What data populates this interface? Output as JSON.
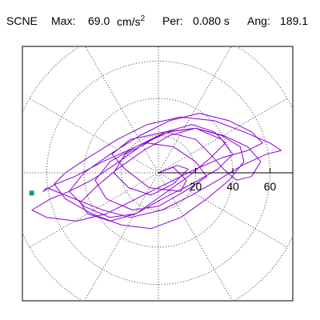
{
  "header": {
    "station": "SCNE",
    "max_label": "Max:",
    "max_value": "69.0",
    "max_unit": "cm/s",
    "max_unit_exp": "2",
    "period_label": "Per:",
    "period_value": "0.080 s",
    "angle_label": "Ang:",
    "angle_value": "189.1"
  },
  "chart_data": {
    "type": "line",
    "subtype": "polar-orbit",
    "title": "",
    "rmax": 80,
    "rings": [
      20,
      40,
      60,
      80
    ],
    "ring_labels": [
      "20",
      "40",
      "60"
    ],
    "spokes_deg": [
      0,
      30,
      60,
      90,
      120,
      150,
      180,
      210,
      240,
      270,
      300,
      330
    ],
    "grid": "dotted",
    "max_amplitude": 69.0,
    "max_angle_deg": 189.1,
    "trace_color": "#8a00d4",
    "axis_color": "#000000",
    "marker_color": "#0f9a7a",
    "series": [
      {
        "type": "orbit",
        "x": [
          0,
          8,
          15,
          12,
          -5,
          -18,
          -25,
          -15,
          4,
          20,
          28,
          35,
          42,
          50,
          55,
          48,
          35,
          20,
          6,
          -12,
          -30,
          -45,
          -55,
          -62,
          -60,
          -45,
          -30,
          -15,
          2,
          18,
          32,
          45,
          58,
          66,
          60,
          46,
          30,
          12,
          -6,
          -22,
          -38,
          -50,
          -56,
          -50,
          -36,
          -20,
          -4,
          12,
          26,
          38,
          46,
          44,
          34,
          20,
          6,
          -8,
          -22,
          -34,
          -42,
          -38,
          -26,
          -12,
          2,
          16,
          28,
          36,
          30,
          18,
          4,
          -10,
          -24,
          -36,
          -48,
          -58,
          -68,
          -60,
          -44,
          -28,
          -12,
          4,
          20,
          34,
          48,
          56,
          50,
          38,
          22,
          6,
          -10,
          -26,
          -40,
          -48,
          -40,
          -26,
          -12,
          2,
          18,
          32,
          40,
          34,
          20,
          4,
          -12,
          -26,
          -34,
          -28,
          -14,
          0,
          14,
          26,
          20,
          8,
          -6,
          -18,
          -24,
          -16,
          -4,
          8,
          16,
          10,
          0
        ],
        "y": [
          0,
          3,
          -4,
          -10,
          -8,
          2,
          10,
          18,
          22,
          18,
          10,
          2,
          -4,
          -2,
          6,
          14,
          20,
          24,
          22,
          14,
          6,
          -2,
          -6,
          -10,
          -8,
          -14,
          -20,
          -24,
          -20,
          -12,
          -4,
          4,
          10,
          12,
          16,
          22,
          28,
          30,
          26,
          18,
          8,
          0,
          -6,
          -14,
          -22,
          -28,
          -30,
          -24,
          -14,
          -4,
          6,
          14,
          20,
          24,
          20,
          12,
          2,
          -8,
          -16,
          -22,
          -26,
          -22,
          -12,
          -2,
          8,
          16,
          22,
          26,
          22,
          14,
          4,
          -4,
          -10,
          -14,
          -20,
          -24,
          -26,
          -22,
          -14,
          -6,
          2,
          8,
          12,
          16,
          22,
          28,
          32,
          28,
          20,
          10,
          0,
          -10,
          -18,
          -24,
          -22,
          -14,
          -6,
          2,
          10,
          18,
          24,
          22,
          14,
          6,
          -4,
          -14,
          -20,
          -18,
          -10,
          -2,
          6,
          14,
          16,
          10,
          0,
          -8,
          -12,
          -6,
          2,
          4,
          0
        ]
      }
    ]
  }
}
